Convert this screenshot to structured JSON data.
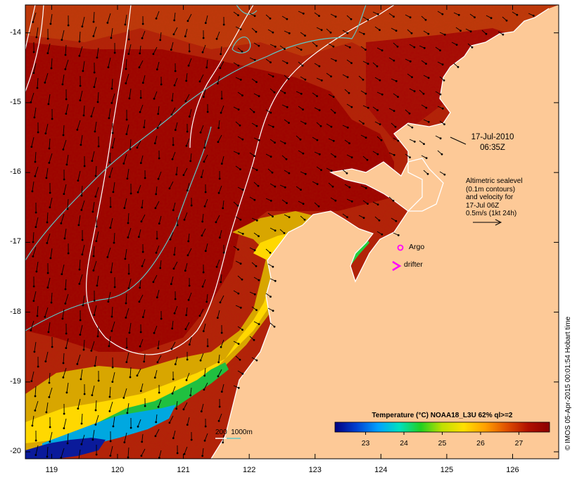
{
  "map": {
    "axes": {
      "lon_ticks": [
        "119",
        "120",
        "121",
        "122",
        "123",
        "124",
        "125",
        "126"
      ],
      "lat_ticks": [
        "-14",
        "-15",
        "-16",
        "-17",
        "-18",
        "-19",
        "-20"
      ],
      "lon_range": [
        118.6,
        126.7
      ],
      "lat_range": [
        -20.1,
        -13.6
      ]
    },
    "timestamp": {
      "date": "17-Jul-2010",
      "time": "06:35Z"
    },
    "altimetry_note": {
      "lines": [
        "Altimetric sealevel",
        "(0.1m contours)",
        "and velocity for",
        "17-Jul 06Z",
        "0.5m/s (1kt 24h)"
      ]
    },
    "legend": {
      "argo_label": "Argo",
      "drifter_label": "drifter",
      "argo_color": "#ff00ff",
      "drifter_color": "#ff00ff"
    },
    "isobaths": {
      "label": "200  1000m",
      "color_200": "#ffffff",
      "color_1000": "#5fc7c7"
    },
    "colorbar": {
      "title": "Temperature (°C) NOAA18_L3U 62% ql>=2",
      "ticks": [
        "23",
        "24",
        "25",
        "26",
        "27"
      ],
      "range": [
        22.2,
        27.8
      ],
      "colors": [
        "#000080",
        "#0040d0",
        "#00a0ff",
        "#00e0c0",
        "#20d020",
        "#c0e000",
        "#ffe000",
        "#ffa000",
        "#e05000",
        "#b01000",
        "#8b0000"
      ]
    },
    "credit": "© IMOS 05-Apr-2015 00:01:54 Hobart time",
    "colors": {
      "land": "#fdc997",
      "warm_sea": "#b61c00",
      "deep_red": "#9e0000",
      "arrows": "#000000"
    }
  }
}
